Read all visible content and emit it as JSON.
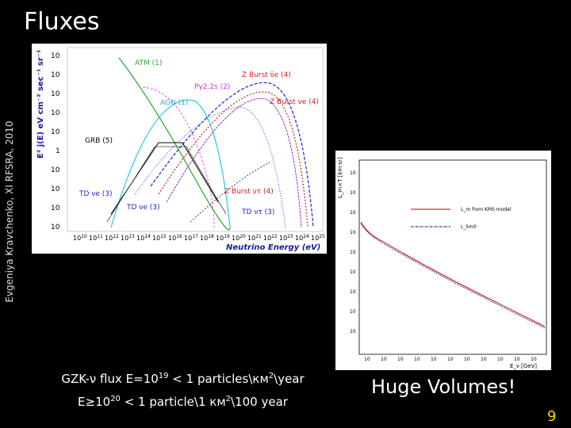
{
  "slide": {
    "title": "Fluxes",
    "side_text": "Evgeniya Kravchenko, XI RFSRA, 2010",
    "caption_line1_prefix": "GZK-ν flux E=10",
    "caption_line1_exp": "19",
    "caption_line1_suffix": " < 1 particles\\км",
    "caption_line1_exp2": "2",
    "caption_line1_end": "\\year",
    "caption_line2_prefix": "E≥10",
    "caption_line2_exp": "20",
    "caption_line2_suffix": "  < 1 particle\\1 км",
    "caption_line2_exp2": "2",
    "caption_line2_end": "\\100 year",
    "callout": "Huge Volumes!",
    "page_number": "9"
  },
  "figure1": {
    "ylabel": "E² j(E) eV cm⁻² sec⁻¹ sr⁻¹",
    "xlabel": "Neutrino Energy (eV)",
    "labels": {
      "atm": "ATM (1)",
      "pg": "Pγ2.2s (2)",
      "agn": "AGN (1)",
      "zb1": "Z Burst ν̄e (4)",
      "zb2": "Z Burst νe (4)",
      "grb": "GRB (5)",
      "td1": "TD νe (3)",
      "td2": "TD νe (3)",
      "zb3": "Z Burst ντ (4)",
      "td3": "TD ντ (3)"
    },
    "yticks": [
      "10 5",
      "10 4",
      "10 3",
      "10 2",
      "10",
      "1",
      "10 -1",
      "10 -2",
      "10 3",
      "10 4"
    ],
    "xticks": [
      "10",
      "11",
      "12",
      "13",
      "14",
      "15",
      "16",
      "17",
      "18",
      "19",
      "20",
      "21",
      "22",
      "23",
      "24",
      "25"
    ]
  },
  "figure2": {
    "legend1": "L_m from KMS model",
    "legend2": "L_limit",
    "ylabel": "L_m×T [km·sr]",
    "xlabel": "E_ν [GeV]"
  }
}
